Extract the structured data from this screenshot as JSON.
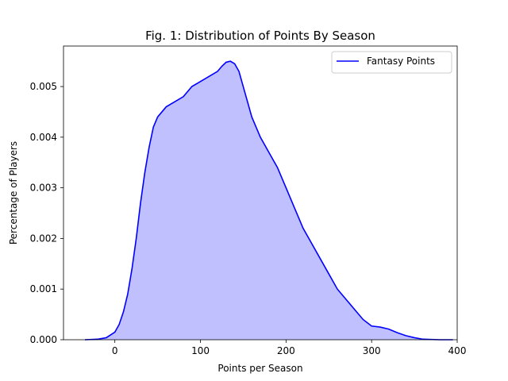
{
  "chart_data": {
    "type": "area",
    "title": "Fig. 1: Distribution of Points By Season",
    "xlabel": "Points per Season",
    "ylabel": "Percentage of Players",
    "xlim": [
      -60,
      400
    ],
    "ylim": [
      0,
      0.0058
    ],
    "x_ticks": [
      0,
      100,
      200,
      300,
      400
    ],
    "x_tick_labels": [
      "0",
      "100",
      "200",
      "300",
      "400"
    ],
    "y_ticks": [
      0,
      0.001,
      0.002,
      0.003,
      0.004,
      0.005
    ],
    "y_tick_labels": [
      "0.000",
      "0.001",
      "0.002",
      "0.003",
      "0.004",
      "0.005"
    ],
    "grid": false,
    "legend": {
      "position": "top-right"
    },
    "colors": {
      "line": "#0000ff",
      "fill": "#c0c0ff"
    },
    "series": [
      {
        "name": "Fantasy Points",
        "x": [
          -35,
          -20,
          -10,
          0,
          5,
          10,
          15,
          20,
          25,
          30,
          35,
          40,
          45,
          50,
          55,
          60,
          70,
          80,
          90,
          100,
          110,
          120,
          125,
          130,
          135,
          140,
          145,
          150,
          155,
          160,
          170,
          180,
          190,
          200,
          210,
          220,
          230,
          240,
          250,
          260,
          270,
          280,
          290,
          300,
          310,
          320,
          330,
          340,
          350,
          360,
          380,
          395
        ],
        "y": [
          0.0,
          1e-05,
          4e-05,
          0.00015,
          0.0003,
          0.00055,
          0.0009,
          0.0014,
          0.002,
          0.0027,
          0.0033,
          0.0038,
          0.0042,
          0.0044,
          0.0045,
          0.0046,
          0.0047,
          0.0048,
          0.005,
          0.0051,
          0.0052,
          0.0053,
          0.0054,
          0.00548,
          0.0055,
          0.00545,
          0.0053,
          0.005,
          0.0047,
          0.0044,
          0.004,
          0.0037,
          0.0034,
          0.003,
          0.0026,
          0.0022,
          0.0019,
          0.0016,
          0.0013,
          0.001,
          0.0008,
          0.0006,
          0.0004,
          0.00027,
          0.00025,
          0.00021,
          0.00014,
          8e-05,
          4e-05,
          1e-05,
          0.0,
          0.0
        ]
      }
    ]
  }
}
